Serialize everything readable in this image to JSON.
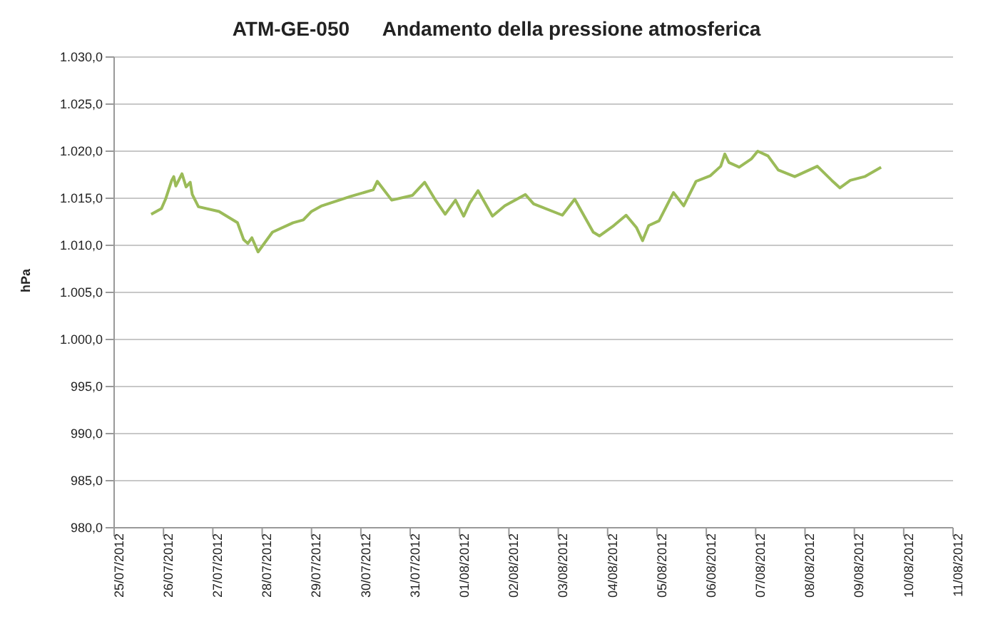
{
  "chart_data": {
    "type": "line",
    "title": "ATM-GE-050      Andamento della pressione atmosferica",
    "ylabel": "hPa",
    "grid": "y",
    "legend": false,
    "marker": "none",
    "line_style": "solid",
    "x": [
      "2012-07-25T18:00",
      "2012-07-25T23:00",
      "2012-07-26T01:00",
      "2012-07-26T04:00",
      "2012-07-26T05:00",
      "2012-07-26T06:00",
      "2012-07-26T09:00",
      "2012-07-26T11:00",
      "2012-07-26T13:00",
      "2012-07-26T14:00",
      "2012-07-26T17:00",
      "2012-07-27T03:00",
      "2012-07-27T12:00",
      "2012-07-27T15:00",
      "2012-07-27T17:00",
      "2012-07-27T19:00",
      "2012-07-27T22:00",
      "2012-07-28T05:00",
      "2012-07-28T15:00",
      "2012-07-28T20:00",
      "2012-07-29T00:00",
      "2012-07-29T05:00",
      "2012-07-29T19:00",
      "2012-07-30T06:00",
      "2012-07-30T08:00",
      "2012-07-30T15:00",
      "2012-07-31T01:00",
      "2012-07-31T07:00",
      "2012-07-31T12:00",
      "2012-07-31T17:00",
      "2012-07-31T22:00",
      "2012-08-01T02:00",
      "2012-08-01T05:00",
      "2012-08-01T09:00",
      "2012-08-01T16:00",
      "2012-08-01T22:00",
      "2012-08-02T08:00",
      "2012-08-02T12:00",
      "2012-08-03T02:00",
      "2012-08-03T08:00",
      "2012-08-03T17:00",
      "2012-08-03T20:00",
      "2012-08-04T03:00",
      "2012-08-04T09:00",
      "2012-08-04T14:00",
      "2012-08-04T17:00",
      "2012-08-04T20:00",
      "2012-08-05T01:00",
      "2012-08-05T08:00",
      "2012-08-05T13:00",
      "2012-08-05T19:00",
      "2012-08-06T02:00",
      "2012-08-06T07:00",
      "2012-08-06T09:00",
      "2012-08-06T11:00",
      "2012-08-06T16:00",
      "2012-08-06T22:00",
      "2012-08-07T01:00",
      "2012-08-07T06:00",
      "2012-08-07T11:00",
      "2012-08-07T19:00",
      "2012-08-08T06:00",
      "2012-08-08T13:00",
      "2012-08-08T17:00",
      "2012-08-08T22:00",
      "2012-08-09T05:00",
      "2012-08-09T13:00"
    ],
    "series": [
      {
        "color": "#9bbb59",
        "values": [
          1013.3,
          1013.9,
          1014.9,
          1016.9,
          1017.3,
          1016.3,
          1017.6,
          1016.2,
          1016.7,
          1015.4,
          1014.1,
          1013.6,
          1012.4,
          1010.6,
          1010.2,
          1010.8,
          1009.3,
          1011.4,
          1012.4,
          1012.7,
          1013.6,
          1014.2,
          1015.2,
          1015.9,
          1016.8,
          1014.8,
          1015.3,
          1016.7,
          1014.9,
          1013.3,
          1014.8,
          1013.1,
          1014.5,
          1015.8,
          1013.1,
          1014.2,
          1015.4,
          1014.4,
          1013.2,
          1014.9,
          1011.4,
          1011.0,
          1012.1,
          1013.2,
          1011.9,
          1010.5,
          1012.1,
          1012.6,
          1015.6,
          1014.2,
          1016.8,
          1017.4,
          1018.4,
          1019.7,
          1018.8,
          1018.3,
          1019.2,
          1020.0,
          1019.5,
          1018.0,
          1017.3,
          1018.4,
          1016.9,
          1016.1,
          1016.9,
          1017.3,
          1018.3
        ]
      }
    ],
    "xlim": [
      "2012-07-25",
      "2012-08-11"
    ],
    "xticks": [
      {
        "value": "2012-07-25",
        "label": "25/07/2012"
      },
      {
        "value": "2012-07-26",
        "label": "26/07/2012"
      },
      {
        "value": "2012-07-27",
        "label": "27/07/2012"
      },
      {
        "value": "2012-07-28",
        "label": "28/07/2012"
      },
      {
        "value": "2012-07-29",
        "label": "29/07/2012"
      },
      {
        "value": "2012-07-30",
        "label": "30/07/2012"
      },
      {
        "value": "2012-07-31",
        "label": "31/07/2012"
      },
      {
        "value": "2012-08-01",
        "label": "01/08/2012"
      },
      {
        "value": "2012-08-02",
        "label": "02/08/2012"
      },
      {
        "value": "2012-08-03",
        "label": "03/08/2012"
      },
      {
        "value": "2012-08-04",
        "label": "04/08/2012"
      },
      {
        "value": "2012-08-05",
        "label": "05/08/2012"
      },
      {
        "value": "2012-08-06",
        "label": "06/08/2012"
      },
      {
        "value": "2012-08-07",
        "label": "07/08/2012"
      },
      {
        "value": "2012-08-08",
        "label": "08/08/2012"
      },
      {
        "value": "2012-08-09",
        "label": "09/08/2012"
      },
      {
        "value": "2012-08-10",
        "label": "10/08/2012"
      },
      {
        "value": "2012-08-11",
        "label": "11/08/2012"
      }
    ],
    "ylim": [
      980,
      1030
    ],
    "yticks": [
      {
        "value": 980,
        "label": "980,0"
      },
      {
        "value": 985,
        "label": "985,0"
      },
      {
        "value": 990,
        "label": "990,0"
      },
      {
        "value": 995,
        "label": "995,0"
      },
      {
        "value": 1000,
        "label": "1.000,0"
      },
      {
        "value": 1005,
        "label": "1.005,0"
      },
      {
        "value": 1010,
        "label": "1.010,0"
      },
      {
        "value": 1015,
        "label": "1.015,0"
      },
      {
        "value": 1020,
        "label": "1.020,0"
      },
      {
        "value": 1025,
        "label": "1.025,0"
      },
      {
        "value": 1030,
        "label": "1.030,0"
      }
    ]
  }
}
